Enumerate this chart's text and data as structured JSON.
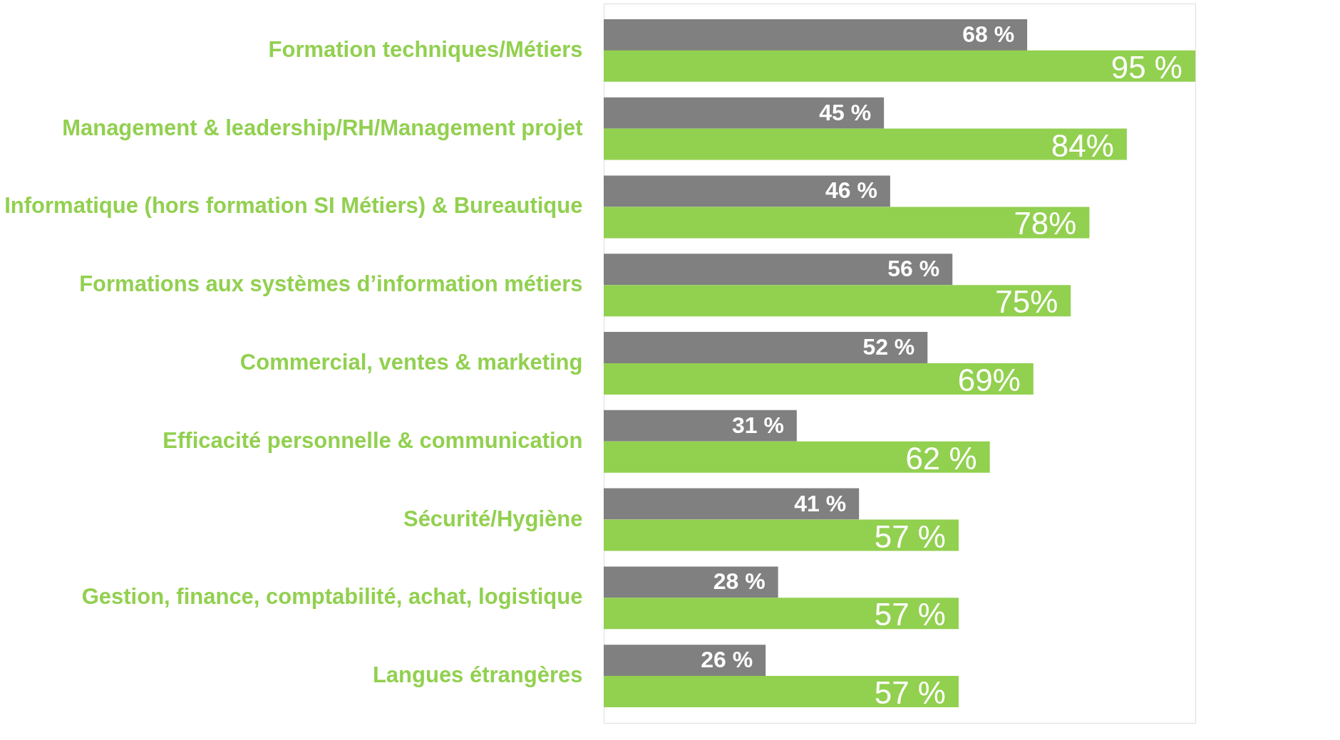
{
  "chart_data": {
    "type": "bar",
    "orientation": "horizontal",
    "categories": [
      "Formation techniques/Métiers",
      "Management & leadership/RH/Management projet",
      "Informatique (hors formation SI Métiers) & Bureautique",
      "Formations aux systèmes d’information métiers",
      "Commercial, ventes & marketing",
      "Efficacité personnelle & communication",
      "Sécurité/Hygiène",
      "Gestion, finance, comptabilité, achat, logistique",
      "Langues étrangères"
    ],
    "series": [
      {
        "color": "#808080",
        "values": [
          68,
          45,
          46,
          56,
          52,
          31,
          41,
          28,
          26
        ],
        "value_labels": [
          "68 %",
          "45 %",
          "46 %",
          "56 %",
          "52 %",
          "31 %",
          "41 %",
          "28 %",
          "26 %"
        ]
      },
      {
        "color": "#92d050",
        "values": [
          95,
          84,
          78,
          75,
          69,
          62,
          57,
          57,
          57
        ],
        "value_labels": [
          "95 %",
          "84%",
          "78%",
          "75%",
          "69%",
          "62 %",
          "57 %",
          "57 %",
          "57 %"
        ]
      }
    ],
    "grid": false
  }
}
